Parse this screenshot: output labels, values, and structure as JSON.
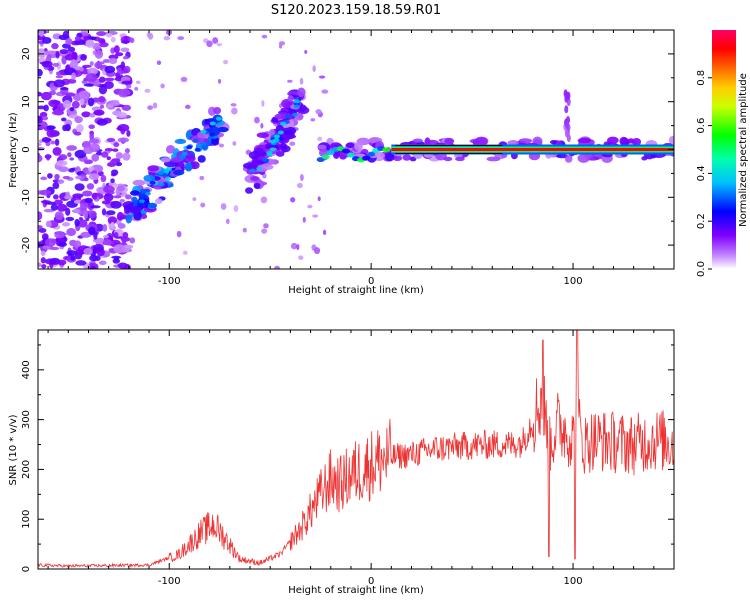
{
  "title": "S120.2023.159.18.59.R01",
  "chart_data": [
    {
      "type": "heatmap",
      "xlabel": "Height of straight line (km)",
      "ylabel": "Frequency (Hz)",
      "xlim": [
        -165,
        150
      ],
      "ylim": [
        -25,
        25
      ],
      "xticks": [
        -100,
        0,
        100
      ],
      "xtick_labels": [
        "-100",
        "0",
        "100"
      ],
      "yticks": [
        -20,
        -10,
        0,
        10,
        20
      ],
      "ytick_labels": [
        "-20",
        "-10",
        "0",
        "10",
        "20"
      ],
      "colorbar": {
        "label": "Normalized spectral amplitude",
        "range": [
          0,
          1
        ],
        "ticks": [
          0.0,
          0.2,
          0.4,
          0.6,
          0.8
        ],
        "tick_labels": [
          "0.0",
          "0.2",
          "0.4",
          "0.6",
          "0.8"
        ],
        "colormap": "rainbow-white-to-red",
        "stops": [
          "#ffffff",
          "#8000ff",
          "#0000ff",
          "#00ffff",
          "#00ff00",
          "#ffff00",
          "#ff8000",
          "#ff0000",
          "#ff0066"
        ]
      },
      "features": [
        {
          "name": "noise",
          "x_range": [
            -165,
            -120
          ],
          "y_range": [
            -25,
            25
          ],
          "amplitude": 0.15
        },
        {
          "name": "rising-trace",
          "x_start": -120,
          "y_start": -13,
          "x_end": -75,
          "y_end": 6,
          "amplitude": 0.3
        },
        {
          "name": "rising-trace-2",
          "x_start": -60,
          "y_start": -6,
          "x_end": -35,
          "y_end": 10,
          "amplitude": 0.15
        },
        {
          "name": "carrier",
          "x_range": [
            -25,
            150
          ],
          "y": 0,
          "amplitude": 0.9
        }
      ]
    },
    {
      "type": "line",
      "xlabel": "Height of straight line (km)",
      "ylabel": "SNR (10 * v/v)",
      "xlim": [
        -165,
        150
      ],
      "ylim": [
        0,
        480
      ],
      "xticks": [
        -100,
        0,
        100
      ],
      "xtick_labels": [
        "-100",
        "0",
        "100"
      ],
      "yticks": [
        0,
        100,
        200,
        300,
        400
      ],
      "ytick_labels": [
        "0",
        "100",
        "200",
        "300",
        "400"
      ],
      "color": "#ee3333",
      "x": [
        -165,
        -150,
        -130,
        -110,
        -95,
        -85,
        -78,
        -72,
        -65,
        -55,
        -45,
        -35,
        -25,
        -20,
        -15,
        -10,
        -5,
        0,
        5,
        10,
        20,
        30,
        40,
        50,
        60,
        70,
        75,
        80,
        85,
        88,
        92,
        96,
        100,
        102,
        105,
        110,
        120,
        130,
        140,
        150
      ],
      "y": [
        8,
        6,
        7,
        8,
        30,
        70,
        90,
        60,
        20,
        12,
        30,
        80,
        150,
        180,
        170,
        190,
        200,
        210,
        220,
        225,
        230,
        240,
        245,
        248,
        250,
        250,
        255,
        300,
        350,
        240,
        290,
        280,
        260,
        300,
        250,
        260,
        255,
        250,
        260,
        255
      ],
      "peaks": [
        {
          "x": 85,
          "y": 460
        },
        {
          "x": 102,
          "y": 480
        },
        {
          "x": 88,
          "y": 25
        },
        {
          "x": 101,
          "y": 20
        }
      ]
    }
  ]
}
